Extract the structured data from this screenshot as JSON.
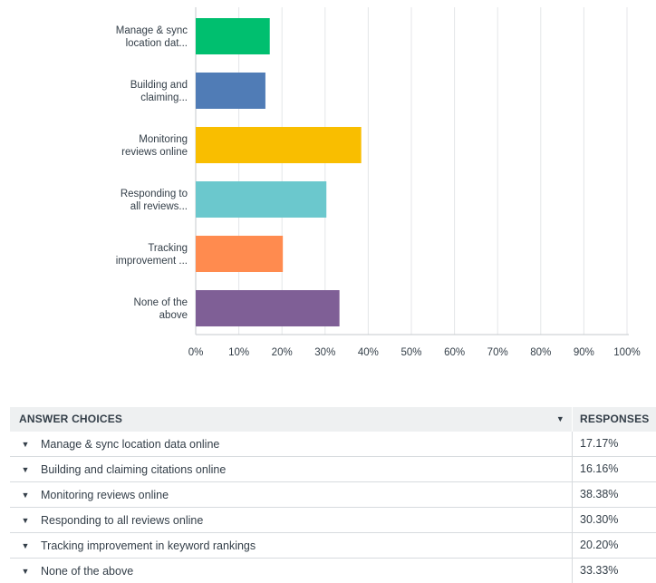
{
  "chart_data": {
    "type": "bar",
    "orientation": "horizontal",
    "categories": [
      [
        "Manage & sync",
        "location dat..."
      ],
      [
        "Building and",
        "claiming..."
      ],
      [
        "Monitoring",
        "reviews online"
      ],
      [
        "Responding to",
        "all reviews..."
      ],
      [
        "Tracking",
        "improvement ..."
      ],
      [
        "None of the",
        "above"
      ]
    ],
    "values": [
      17.17,
      16.16,
      38.38,
      30.3,
      20.2,
      33.33
    ],
    "colors": [
      "#00bf6f",
      "#507cb6",
      "#f9be00",
      "#6bc8cd",
      "#ff8b4f",
      "#7f5f96"
    ],
    "xlim": [
      0,
      100
    ],
    "xticks": [
      "0%",
      "10%",
      "20%",
      "30%",
      "40%",
      "50%",
      "60%",
      "70%",
      "80%",
      "90%",
      "100%"
    ],
    "grid": true
  },
  "table": {
    "header": {
      "choices": "ANSWER CHOICES",
      "responses": "RESPONSES"
    },
    "rows": [
      {
        "choice": "Manage & sync location data online",
        "response": "17.17%"
      },
      {
        "choice": "Building and claiming citations online",
        "response": "16.16%"
      },
      {
        "choice": "Monitoring reviews online",
        "response": "38.38%"
      },
      {
        "choice": "Responding to all reviews online",
        "response": "30.30%"
      },
      {
        "choice": "Tracking improvement in keyword rankings",
        "response": "20.20%"
      },
      {
        "choice": "None of the above",
        "response": "33.33%"
      }
    ]
  },
  "icons": {
    "sort": "caret-down-icon",
    "expand": "caret-down-icon"
  }
}
